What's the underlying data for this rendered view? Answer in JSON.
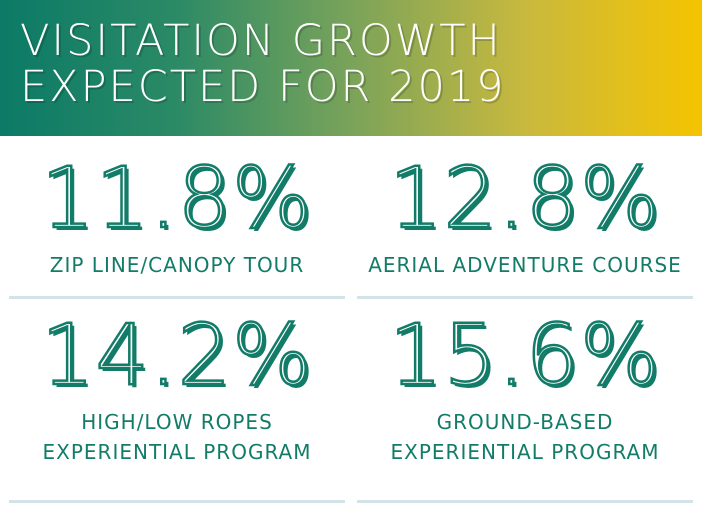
{
  "header": {
    "title": "VISITATION GROWTH EXPECTED FOR 2019",
    "gradient_start": "#0b7a66",
    "gradient_end": "#f5c400"
  },
  "stats": [
    {
      "value": "11.8%",
      "label": "ZIP LINE/CANOPY TOUR"
    },
    {
      "value": "12.8%",
      "label": "AERIAL ADVENTURE COURSE"
    },
    {
      "value": "14.2%",
      "label": "HIGH/LOW ROPES EXPERIENTIAL PROGRAM"
    },
    {
      "value": "15.6%",
      "label": "GROUND-BASED EXPERIENTIAL PROGRAM"
    }
  ],
  "colors": {
    "accent": "#127c68",
    "divider": "#d3e3e8"
  }
}
